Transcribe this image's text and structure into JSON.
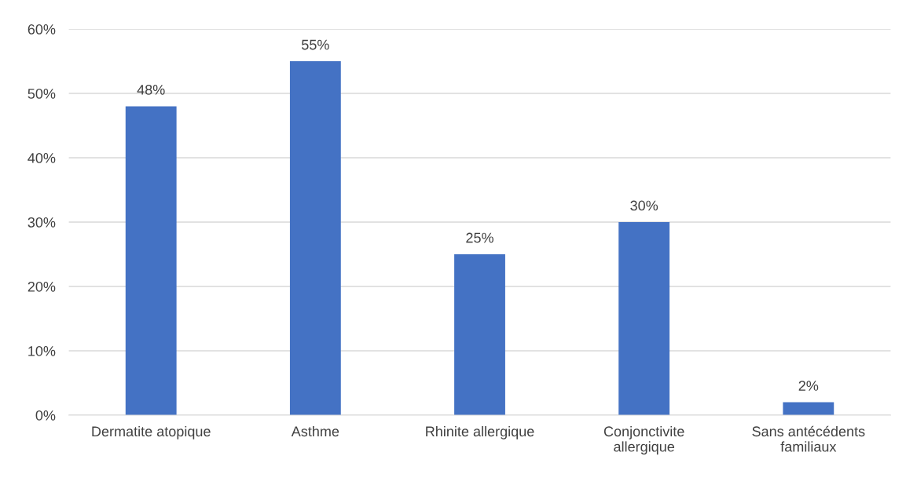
{
  "chart_data": {
    "type": "bar",
    "categories": [
      "Dermatite atopique",
      "Asthme",
      "Rhinite allergique",
      "Conjonctivite allergique",
      "Sans antécédents familiaux"
    ],
    "values": [
      48,
      55,
      25,
      30,
      2
    ],
    "value_labels": [
      "48%",
      "55%",
      "25%",
      "30%",
      "2%"
    ],
    "color": "#4472c4",
    "ylim": [
      0,
      60
    ],
    "yticks": [
      {
        "value": 0,
        "label": "0%"
      },
      {
        "value": 10,
        "label": "10%"
      },
      {
        "value": 20,
        "label": "20%"
      },
      {
        "value": 30,
        "label": "30%"
      },
      {
        "value": 40,
        "label": "40%"
      },
      {
        "value": 50,
        "label": "50%"
      },
      {
        "value": 60,
        "label": "60%"
      }
    ],
    "grid": "y"
  }
}
